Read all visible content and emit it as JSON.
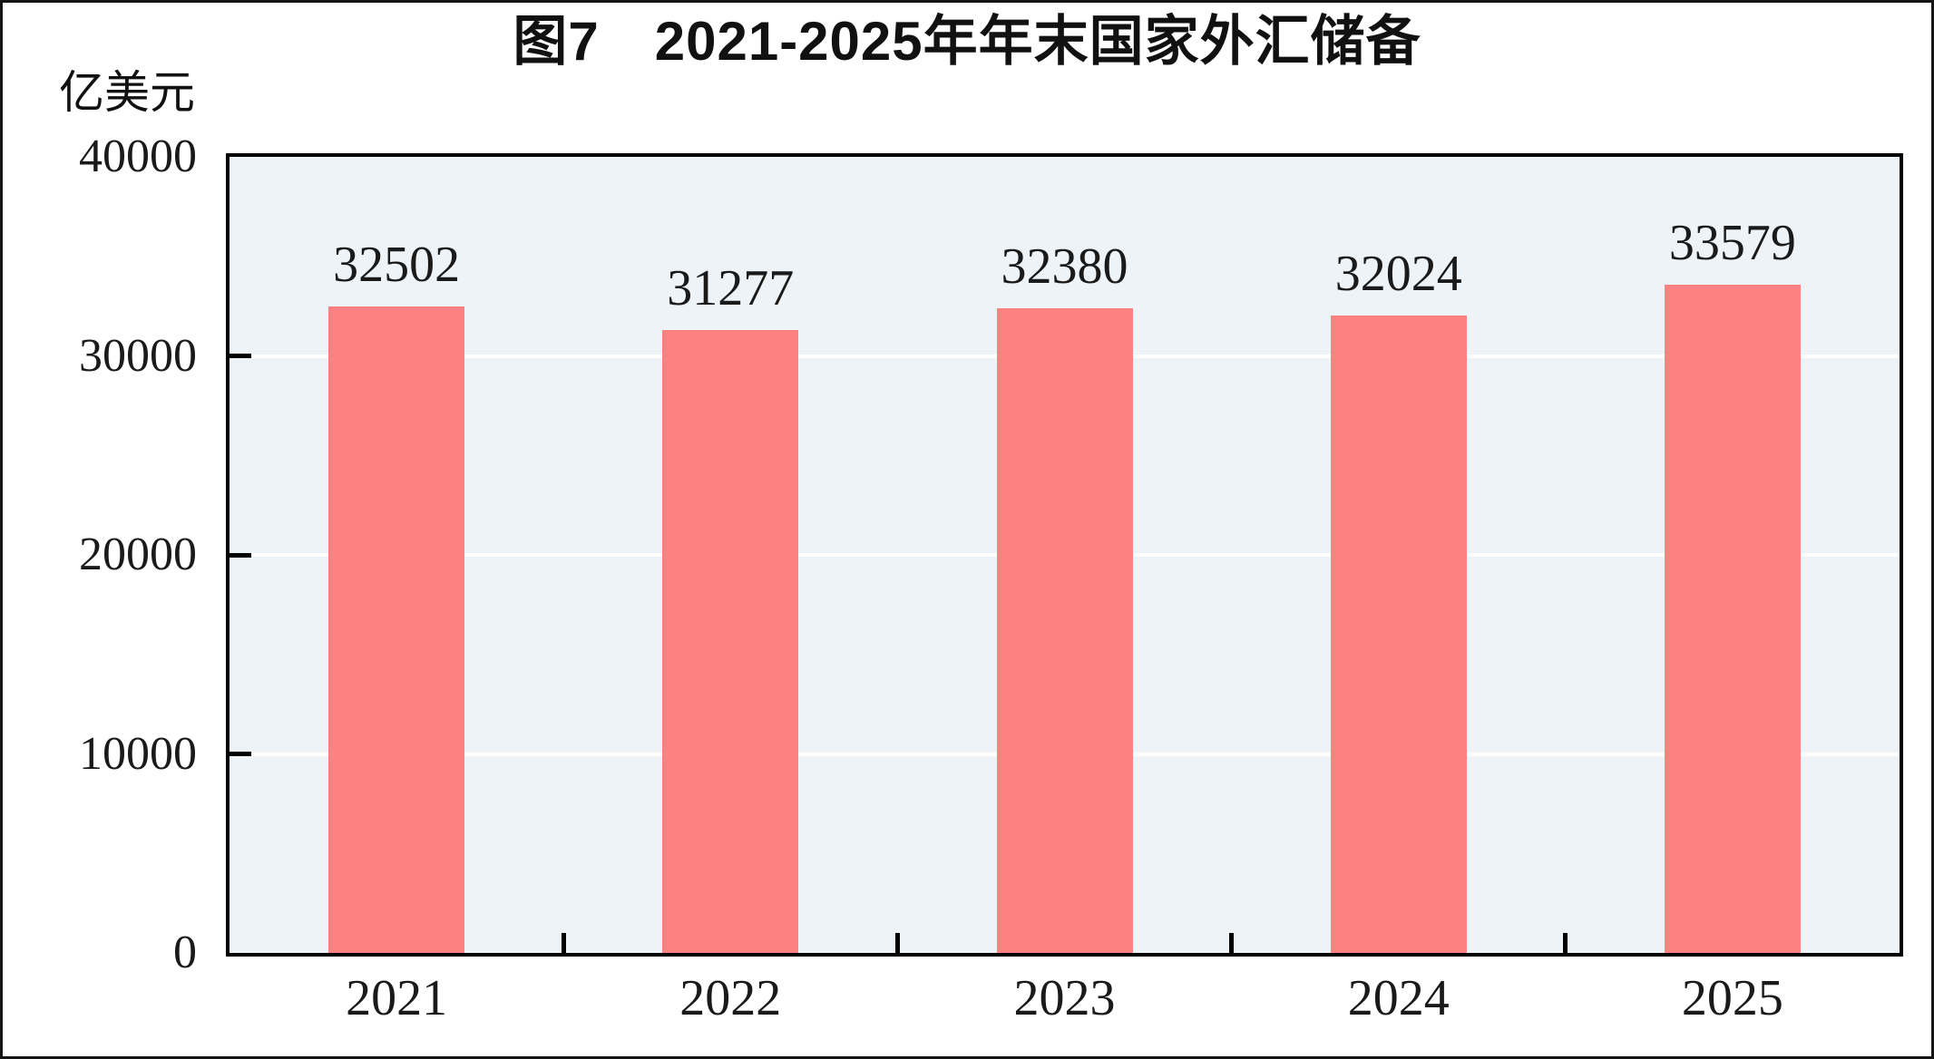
{
  "title": "图7　2021-2025年年末国家外汇储备",
  "y_axis_unit": "亿美元",
  "colors": {
    "bar": "#fc8181",
    "plot_background": "#edf3f6",
    "gridline": "#ffffff",
    "axis_frame": "#000000",
    "text": "#1a1a1a"
  },
  "chart_data": {
    "type": "bar",
    "title": "图7　2021-2025年年末国家外汇储备",
    "categories": [
      "2021",
      "2022",
      "2023",
      "2024",
      "2025"
    ],
    "values": [
      32502,
      31277,
      32380,
      32024,
      33579
    ],
    "bar_value_labels": [
      "32502",
      "31277",
      "32380",
      "32024",
      "33579"
    ],
    "xlabel": "",
    "ylabel": "亿美元",
    "ylim": [
      0,
      40000
    ],
    "yticks": [
      0,
      10000,
      20000,
      30000,
      40000
    ],
    "ytick_labels": [
      "0",
      "10000",
      "20000",
      "30000",
      "40000"
    ],
    "grid": true,
    "gridline_values": [
      10000,
      20000,
      30000
    ],
    "legend_position": "none"
  }
}
